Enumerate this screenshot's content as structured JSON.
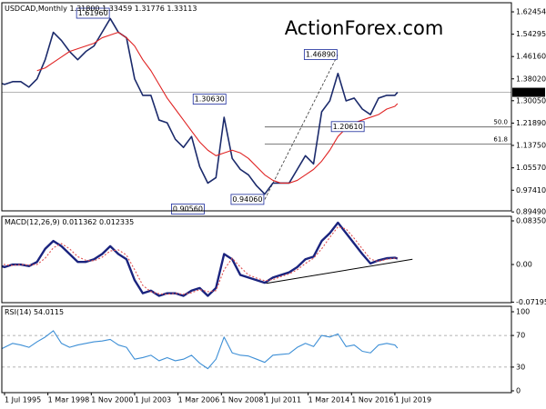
{
  "chart_data": [
    {
      "type": "line",
      "title": "USDCAD,Monthly",
      "last_bar": [
        {
          "value": 1.318,
          "label": "1.31800"
        },
        {
          "value": 1.33459,
          "label": "1.33459"
        },
        {
          "value": 1.31776,
          "label": "1.31776"
        },
        {
          "value": 1.33113,
          "label": "1.33113"
        }
      ],
      "watermark": "ActionForex.com",
      "x": [
        "1995-01-01",
        "1995-07-01",
        "1996-01-01",
        "1996-07-01",
        "1997-01-01",
        "1997-07-01",
        "1998-01-01",
        "1998-07-01",
        "1999-01-01",
        "1999-07-01",
        "2000-01-01",
        "2000-07-01",
        "2001-01-01",
        "2001-07-01",
        "2002-01-01",
        "2002-07-01",
        "2003-01-01",
        "2003-07-01",
        "2004-01-01",
        "2004-07-01",
        "2005-01-01",
        "2005-07-01",
        "2006-01-01",
        "2006-07-01",
        "2007-01-01",
        "2007-07-01",
        "2008-01-01",
        "2008-07-01",
        "2009-01-01",
        "2009-07-01",
        "2010-01-01",
        "2010-07-01",
        "2011-01-01",
        "2011-07-01",
        "2012-01-01",
        "2012-07-01",
        "2013-01-01",
        "2013-07-01",
        "2014-01-01",
        "2014-07-01",
        "2015-01-01",
        "2015-07-01",
        "2016-01-01",
        "2016-07-01",
        "2017-01-01",
        "2017-07-01",
        "2018-01-01",
        "2018-07-01",
        "2019-01-01",
        "2019-07-01",
        "2019-09-01"
      ],
      "series": [
        {
          "color": "#1b2a6b",
          "values": [
            1.37,
            1.36,
            1.37,
            1.37,
            1.35,
            1.38,
            1.45,
            1.55,
            1.52,
            1.48,
            1.45,
            1.48,
            1.5,
            1.55,
            1.6,
            1.55,
            1.53,
            1.38,
            1.32,
            1.32,
            1.23,
            1.22,
            1.16,
            1.13,
            1.17,
            1.06,
            1.0,
            1.02,
            1.24,
            1.09,
            1.05,
            1.03,
            0.99,
            0.96,
            1.0,
            1.0,
            1.0,
            1.05,
            1.1,
            1.07,
            1.26,
            1.3,
            1.4,
            1.3,
            1.31,
            1.27,
            1.25,
            1.31,
            1.32,
            1.32,
            1.33113
          ]
        },
        {
          "color": "#e02424",
          "values": [
            null,
            null,
            null,
            null,
            null,
            1.41,
            1.42,
            1.44,
            1.46,
            1.48,
            1.49,
            1.5,
            1.51,
            1.53,
            1.54,
            1.55,
            1.53,
            1.5,
            1.45,
            1.41,
            1.36,
            1.31,
            1.27,
            1.23,
            1.19,
            1.15,
            1.12,
            1.1,
            1.11,
            1.12,
            1.11,
            1.09,
            1.06,
            1.03,
            1.01,
            1.0,
            1.0,
            1.01,
            1.03,
            1.05,
            1.08,
            1.12,
            1.17,
            1.2,
            1.22,
            1.23,
            1.24,
            1.25,
            1.27,
            1.28,
            1.29
          ]
        }
      ],
      "annotations": [
        {
          "x": "2002-01-01",
          "value": 1.6196,
          "label": "1.61960"
        },
        {
          "x": "2007-11-01",
          "value": 0.9056,
          "label": "0.90560"
        },
        {
          "x": "2009-03-01",
          "value": 1.3063,
          "label": "1.30630"
        },
        {
          "x": "2011-07-01",
          "value": 0.9406,
          "label": "0.94060"
        },
        {
          "x": "2016-01-01",
          "value": 1.4689,
          "label": "1.46890"
        },
        {
          "x": "2017-09-01",
          "value": 1.2061,
          "label": "1.20610"
        }
      ],
      "levels": [
        {
          "value": 1.20475,
          "label": "50.0"
        },
        {
          "value": 1.14241,
          "label": "61.8"
        }
      ],
      "xlim": [
        "1995-05-01",
        "2026-09-01"
      ],
      "ylim": [
        0.8988,
        1.6578
      ],
      "yticks": [
        1.62454,
        1.54295,
        {
          "value": 1.4616,
          "label": "1.46160"
        },
        {
          "value": 1.3802,
          "label": "1.38020"
        },
        {
          "value": 1.3005,
          "label": "1.30050"
        },
        {
          "value": 1.2189,
          "label": "1.21890"
        },
        {
          "value": 1.1375,
          "label": "1.13750"
        },
        {
          "value": 1.0557,
          "label": "1.05570"
        },
        {
          "value": 0.9741,
          "label": "0.97410"
        },
        {
          "value": 0.8949,
          "label": "0.89490"
        }
      ]
    },
    {
      "type": "line",
      "title": "MACD(12,26,9)",
      "x": [
        "1995-01-01",
        "1995-07-01",
        "1996-01-01",
        "1996-07-01",
        "1997-01-01",
        "1997-07-01",
        "1998-01-01",
        "1998-07-01",
        "1999-01-01",
        "1999-07-01",
        "2000-01-01",
        "2000-07-01",
        "2001-01-01",
        "2001-07-01",
        "2002-01-01",
        "2002-07-01",
        "2003-01-01",
        "2003-07-01",
        "2004-01-01",
        "2004-07-01",
        "2005-01-01",
        "2005-07-01",
        "2006-01-01",
        "2006-07-01",
        "2007-01-01",
        "2007-07-01",
        "2008-01-01",
        "2008-07-01",
        "2009-01-01",
        "2009-07-01",
        "2010-01-01",
        "2010-07-01",
        "2011-01-01",
        "2011-07-01",
        "2012-01-01",
        "2012-07-01",
        "2013-01-01",
        "2013-07-01",
        "2014-01-01",
        "2014-07-01",
        "2015-01-01",
        "2015-07-01",
        "2016-01-01",
        "2016-07-01",
        "2017-01-01",
        "2017-07-01",
        "2018-01-01",
        "2018-07-01",
        "2019-01-01",
        "2019-07-01",
        "2019-09-01"
      ],
      "series": [
        {
          "color": "#1a237e",
          "values": [
            0.0,
            -0.005,
            0.0,
            0.0,
            -0.003,
            0.005,
            0.03,
            0.045,
            0.035,
            0.02,
            0.005,
            0.005,
            0.01,
            0.02,
            0.035,
            0.02,
            0.01,
            -0.03,
            -0.055,
            -0.05,
            -0.06,
            -0.055,
            -0.055,
            -0.06,
            -0.05,
            -0.045,
            -0.06,
            -0.045,
            0.02,
            0.01,
            -0.02,
            -0.025,
            -0.03,
            -0.035,
            -0.025,
            -0.02,
            -0.015,
            -0.005,
            0.01,
            0.015,
            0.045,
            0.06,
            0.08,
            0.06,
            0.04,
            0.02,
            0.002,
            0.008,
            0.012,
            0.013,
            0.011362
          ]
        },
        {
          "color": "#e05050",
          "line_style": "dotted",
          "values": [
            0.002,
            0.0,
            -0.002,
            0.0,
            -0.001,
            0.0,
            0.012,
            0.032,
            0.04,
            0.03,
            0.015,
            0.008,
            0.007,
            0.014,
            0.026,
            0.028,
            0.018,
            -0.01,
            -0.04,
            -0.052,
            -0.056,
            -0.057,
            -0.055,
            -0.057,
            -0.054,
            -0.048,
            -0.052,
            -0.05,
            -0.01,
            0.012,
            -0.005,
            -0.02,
            -0.026,
            -0.031,
            -0.029,
            -0.023,
            -0.018,
            -0.01,
            0.002,
            0.012,
            0.03,
            0.052,
            0.072,
            0.068,
            0.05,
            0.03,
            0.01,
            0.006,
            0.01,
            0.012,
            0.012335
          ]
        }
      ],
      "trendline": {
        "x": [
          "2011-08-01",
          "2020-08-01"
        ],
        "values": [
          -0.036,
          0.01
        ]
      },
      "xlim": [
        "1995-05-01",
        "2026-09-01"
      ],
      "ylim": [
        -0.073,
        0.0922
      ],
      "yticks": [
        0.083505,
        {
          "value": 0,
          "label": "0.00"
        },
        -0.07195
      ]
    },
    {
      "type": "line",
      "title": "RSI(14)",
      "x": [
        "1995-01-01",
        "1995-07-01",
        "1996-01-01",
        "1996-07-01",
        "1997-01-01",
        "1997-07-01",
        "1998-01-01",
        "1998-07-01",
        "1999-01-01",
        "1999-07-01",
        "2000-01-01",
        "2000-07-01",
        "2001-01-01",
        "2001-07-01",
        "2002-01-01",
        "2002-07-01",
        "2003-01-01",
        "2003-07-01",
        "2004-01-01",
        "2004-07-01",
        "2005-01-01",
        "2005-07-01",
        "2006-01-01",
        "2006-07-01",
        "2007-01-01",
        "2007-07-01",
        "2008-01-01",
        "2008-07-01",
        "2009-01-01",
        "2009-07-01",
        "2010-01-01",
        "2010-07-01",
        "2011-01-01",
        "2011-07-01",
        "2012-01-01",
        "2012-07-01",
        "2013-01-01",
        "2013-07-01",
        "2014-01-01",
        "2014-07-01",
        "2015-01-01",
        "2015-07-01",
        "2016-01-01",
        "2016-07-01",
        "2017-01-01",
        "2017-07-01",
        "2018-01-01",
        "2018-07-01",
        "2019-01-01",
        "2019-07-01",
        "2019-09-01"
      ],
      "series": [
        {
          "color": "#3d8fd6",
          "values": [
            50,
            55,
            60,
            58,
            55,
            62,
            68,
            76,
            60,
            55,
            58,
            60,
            62,
            63,
            65,
            58,
            55,
            40,
            42,
            45,
            38,
            42,
            38,
            40,
            45,
            35,
            28,
            40,
            68,
            48,
            45,
            44,
            40,
            36,
            45,
            46,
            47,
            55,
            60,
            56,
            70,
            68,
            72,
            56,
            58,
            50,
            48,
            58,
            60,
            58,
            54.0115
          ]
        }
      ],
      "levels": [
        70,
        30
      ],
      "xlim": [
        "1995-05-01",
        "2026-09-01"
      ],
      "ylim": [
        -2.3,
        106.9
      ],
      "yticks": [
        100,
        70,
        30,
        0
      ],
      "xticks": [
        {
          "value": "1995-07-01",
          "label": "1 Jul 1995"
        },
        {
          "value": "1998-03-01",
          "label": "1 Mar 1998"
        },
        {
          "value": "2000-11-01",
          "label": "1 Nov 2000"
        },
        {
          "value": "2003-07-01",
          "label": "1 Jul 2003"
        },
        {
          "value": "2006-03-01",
          "label": "1 Mar 2006"
        },
        {
          "value": "2008-11-01",
          "label": "1 Nov 2008"
        },
        {
          "value": "2011-07-01",
          "label": "1 Jul 2011"
        },
        {
          "value": "2014-03-01",
          "label": "1 Mar 2014"
        },
        {
          "value": "2016-11-01",
          "label": "1 Nov 2016"
        },
        {
          "value": "2019-07-01",
          "label": "1 Jul 2019"
        }
      ]
    }
  ]
}
